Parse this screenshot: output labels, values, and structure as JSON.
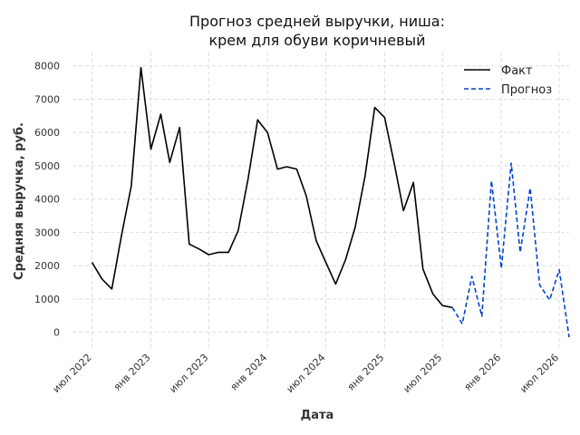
{
  "chart_data": {
    "type": "line",
    "title": [
      "Прогноз средней выручки, ниша:",
      "крем для обуви коричневый"
    ],
    "xlabel": "Дата",
    "ylabel": "Средняя выручка, руб.",
    "ylim": [
      -500,
      8400
    ],
    "yticks": [
      0,
      1000,
      2000,
      3000,
      4000,
      5000,
      6000,
      7000,
      8000
    ],
    "xlim": [
      "2022-05-01",
      "2026-08-01"
    ],
    "xticks": [
      {
        "label": "июл 2022",
        "date": "2022-07-01"
      },
      {
        "label": "янв 2023",
        "date": "2023-01-01"
      },
      {
        "label": "июл 2023",
        "date": "2023-07-01"
      },
      {
        "label": "янв 2024",
        "date": "2024-01-01"
      },
      {
        "label": "июл 2024",
        "date": "2024-07-01"
      },
      {
        "label": "янв 2025",
        "date": "2025-01-01"
      },
      {
        "label": "июл 2025",
        "date": "2025-07-01"
      },
      {
        "label": "янв 2026",
        "date": "2026-01-01"
      },
      {
        "label": "июл 2026",
        "date": "2026-07-01"
      }
    ],
    "grid": true,
    "legend": "top-right",
    "series": [
      {
        "name": "Факт",
        "color": "#000000",
        "style": "solid",
        "points": [
          [
            "2022-07-01",
            2100
          ],
          [
            "2022-08-01",
            1600
          ],
          [
            "2022-09-01",
            1300
          ],
          [
            "2022-10-01",
            2900
          ],
          [
            "2022-11-01",
            4400
          ],
          [
            "2022-12-01",
            7950
          ],
          [
            "2023-01-01",
            5500
          ],
          [
            "2023-02-01",
            6550
          ],
          [
            "2023-03-01",
            5100
          ],
          [
            "2023-04-01",
            6150
          ],
          [
            "2023-05-01",
            2650
          ],
          [
            "2023-06-01",
            2500
          ],
          [
            "2023-07-01",
            2330
          ],
          [
            "2023-08-01",
            2400
          ],
          [
            "2023-09-01",
            2400
          ],
          [
            "2023-10-01",
            3050
          ],
          [
            "2023-11-01",
            4600
          ],
          [
            "2023-12-01",
            6380
          ],
          [
            "2024-01-01",
            6000
          ],
          [
            "2024-02-01",
            4900
          ],
          [
            "2024-03-01",
            4970
          ],
          [
            "2024-04-01",
            4900
          ],
          [
            "2024-05-01",
            4100
          ],
          [
            "2024-06-01",
            2750
          ],
          [
            "2024-07-01",
            2100
          ],
          [
            "2024-08-01",
            1450
          ],
          [
            "2024-09-01",
            2180
          ],
          [
            "2024-10-01",
            3150
          ],
          [
            "2024-11-01",
            4700
          ],
          [
            "2024-12-01",
            6750
          ],
          [
            "2025-01-01",
            6450
          ],
          [
            "2025-02-01",
            5030
          ],
          [
            "2025-03-01",
            3650
          ],
          [
            "2025-04-01",
            4500
          ],
          [
            "2025-05-01",
            1900
          ],
          [
            "2025-06-01",
            1150
          ],
          [
            "2025-07-01",
            800
          ],
          [
            "2025-08-01",
            740
          ]
        ]
      },
      {
        "name": "Прогноз",
        "color": "#0044cc",
        "style": "dashed",
        "points": [
          [
            "2025-08-01",
            740
          ],
          [
            "2025-09-01",
            250
          ],
          [
            "2025-10-01",
            1680
          ],
          [
            "2025-11-01",
            480
          ],
          [
            "2025-12-01",
            4550
          ],
          [
            "2026-01-01",
            1920
          ],
          [
            "2026-02-01",
            5080
          ],
          [
            "2026-03-01",
            2400
          ],
          [
            "2026-04-01",
            4330
          ],
          [
            "2026-05-01",
            1420
          ],
          [
            "2026-06-01",
            970
          ],
          [
            "2026-07-01",
            1880
          ],
          [
            "2026-08-01",
            -150
          ]
        ]
      }
    ]
  }
}
